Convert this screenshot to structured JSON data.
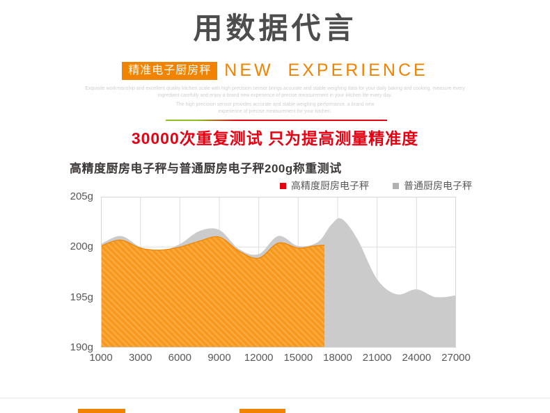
{
  "page": {
    "background": "#ffffff"
  },
  "header": {
    "title": "用数据代言",
    "badge": "精准电子厨房秤",
    "subtitle_en": "NEW EXPERIENCE",
    "fine_print_1": "Exquisite workmanship and excellent quality kitchen scale with high precision sensor brings accurate and stable weighing data for your daily baking and cooking, measure every ingredient carefully and enjoy a brand new experience of precise measurement in your kitchen life every day.",
    "fine_print_2": "The high precision sensor provides accurate and stable weighing performance, a brand new experience of precise measurement for your kitchen.",
    "claim": "30000次重复测试 只为提高测量精准度"
  },
  "colors": {
    "accent_orange": "#f08300",
    "accent_red": "#e60012",
    "accent_green": "#8cc31e",
    "gray_series": "#cbcbcb"
  },
  "chart_data": {
    "type": "area",
    "title": "高精度厨房电子秤与普通厨房电子秤200g称重测试",
    "unit": "g",
    "ylim": [
      190,
      205
    ],
    "y_tick_values": [
      205,
      200,
      195,
      190
    ],
    "y_tick_labels": [
      "205g",
      "200g",
      "195g",
      "190g"
    ],
    "x_ticks": [
      1000,
      3000,
      6000,
      9000,
      12000,
      15000,
      18000,
      21000,
      24000,
      27000
    ],
    "xlabel": "",
    "ylabel": "",
    "grid": true,
    "grid_color": "#dedede",
    "border_color": "#d6d6d6",
    "legend_position": "top-right",
    "series": [
      {
        "name": "高精度厨房电子秤",
        "type": "area",
        "color": "#f7981c",
        "line_color": "#f08300",
        "marker_color": "#e60012",
        "hatched": true,
        "points": [
          [
            1000,
            200.1
          ],
          [
            2000,
            200.7
          ],
          [
            3000,
            199.9
          ],
          [
            4500,
            199.7
          ],
          [
            6000,
            200.0
          ],
          [
            7500,
            200.6
          ],
          [
            9000,
            201.0
          ],
          [
            10500,
            199.6
          ],
          [
            12000,
            198.9
          ],
          [
            13500,
            200.4
          ],
          [
            15000,
            199.9
          ],
          [
            16200,
            200.1
          ],
          [
            17000,
            200.2
          ]
        ]
      },
      {
        "name": "普通厨房电子秤",
        "type": "area",
        "color": "#cbcbcb",
        "line_color": "#cbcbcb",
        "marker_color": "#b2b2b2",
        "hatched": false,
        "points": [
          [
            1000,
            200.3
          ],
          [
            2000,
            201.1
          ],
          [
            3000,
            200.0
          ],
          [
            4500,
            199.6
          ],
          [
            6000,
            200.3
          ],
          [
            7500,
            201.6
          ],
          [
            9000,
            201.7
          ],
          [
            10500,
            199.8
          ],
          [
            12000,
            199.3
          ],
          [
            13500,
            201.1
          ],
          [
            15000,
            200.1
          ],
          [
            16500,
            200.5
          ],
          [
            17500,
            202.2
          ],
          [
            18300,
            202.8
          ],
          [
            19500,
            200.8
          ],
          [
            21000,
            196.8
          ],
          [
            22500,
            195.3
          ],
          [
            24000,
            195.8
          ],
          [
            25500,
            195.0
          ],
          [
            27000,
            195.2
          ]
        ]
      }
    ]
  }
}
